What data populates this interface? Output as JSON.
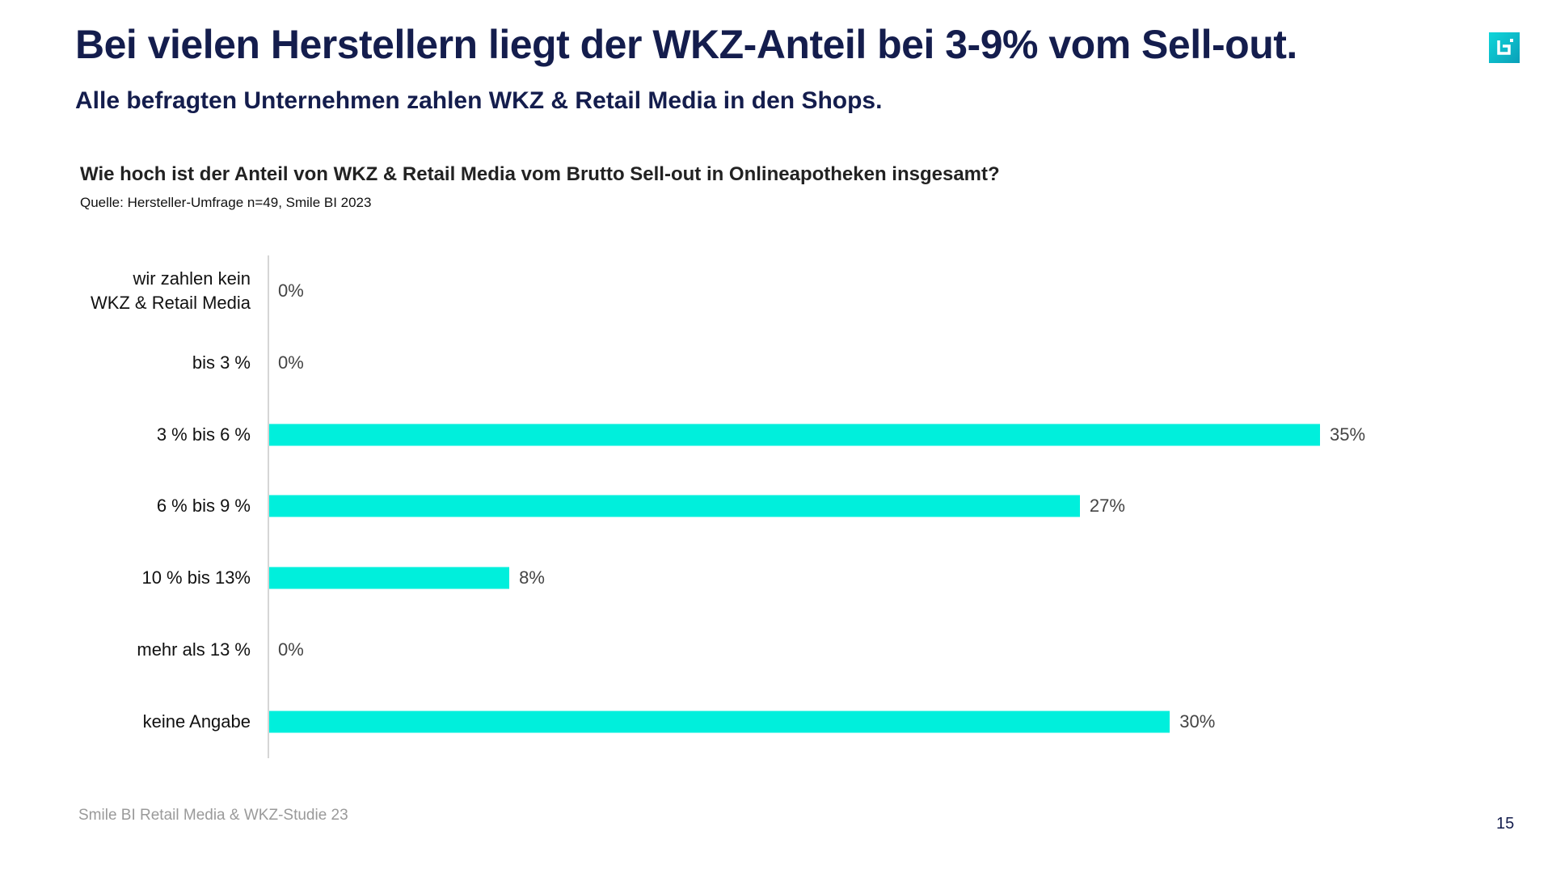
{
  "header": {
    "title": "Bei vielen Herstellern liegt der WKZ-Anteil bei 3-9% vom Sell-out.",
    "subtitle": "Alle befragten Unternehmen zahlen WKZ & Retail Media in den Shops."
  },
  "chart_data": {
    "type": "bar",
    "orientation": "horizontal",
    "title": "Wie hoch ist der Anteil von WKZ & Retail Media vom Brutto Sell-out in Onlineapotheken insgesamt?",
    "source": "Quelle: Hersteller-Umfrage n=49, Smile BI 2023",
    "categories": [
      "wir zahlen kein WKZ & Retail Media",
      "bis 3 %",
      "3 % bis 6 %",
      "6 % bis 9 %",
      "10 % bis 13%",
      "mehr als 13 %",
      "keine Angabe"
    ],
    "values": [
      0,
      0,
      35,
      27,
      8,
      0,
      30
    ],
    "data_labels": [
      "0%",
      "0%",
      "35%",
      "27%",
      "8%",
      "0%",
      "30%"
    ],
    "bar_color": "#00efdc",
    "grid": false
  },
  "footer": {
    "text": "Smile BI Retail Media & WKZ-Studie 23",
    "page": "15"
  },
  "logo": {
    "icon": "smile-bi-logo",
    "color": "#0fc4d0"
  }
}
